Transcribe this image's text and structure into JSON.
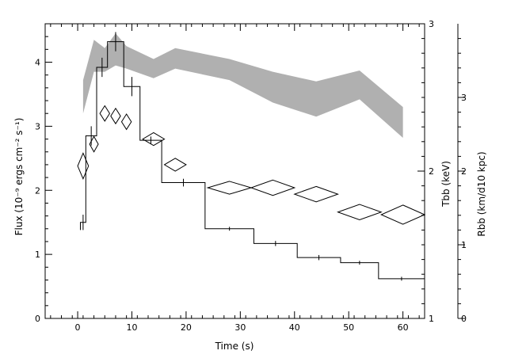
{
  "chart_data": {
    "type": "line",
    "title": "",
    "xlabel": "Time (s)",
    "ylabel": "Flux (10⁻⁹ ergs cm⁻² s⁻¹)",
    "ylabel_right1": "Tbb (keV)",
    "ylabel_right2": "Rbb (km/d10 kpc)",
    "xlim": [
      -6,
      64
    ],
    "ylim": [
      0,
      4.6
    ],
    "x_ticks": [
      0,
      10,
      20,
      30,
      40,
      50,
      60
    ],
    "y_ticks": [
      0,
      1,
      2,
      3,
      4
    ],
    "tbb_axis": {
      "range": [
        1,
        3
      ],
      "ticks": [
        1,
        2,
        3
      ],
      "label_ticks": [
        1,
        2,
        3
      ]
    },
    "rbb_axis": {
      "range": [
        0,
        4
      ],
      "ticks": [
        0,
        1,
        2,
        3
      ]
    },
    "series": [
      {
        "style": "histogram",
        "bins": [
          {
            "x0": 0.5,
            "x1": 1.5,
            "y": 1.5,
            "err": 0.12
          },
          {
            "x0": 1.5,
            "x1": 3.5,
            "y": 2.85,
            "err": 0.15
          },
          {
            "x0": 3.5,
            "x1": 5.5,
            "y": 3.92,
            "err": 0.15
          },
          {
            "x0": 5.5,
            "x1": 8.5,
            "y": 4.32,
            "err": 0.15
          },
          {
            "x0": 8.5,
            "x1": 11.5,
            "y": 3.62,
            "err": 0.15
          },
          {
            "x0": 11.5,
            "x1": 15.5,
            "y": 2.78,
            "err": 0.06
          },
          {
            "x0": 15.5,
            "x1": 23.5,
            "y": 2.12,
            "err": 0.06
          },
          {
            "x0": 23.5,
            "x1": 32.5,
            "y": 1.4,
            "err": 0.03
          },
          {
            "x0": 32.5,
            "x1": 40.5,
            "y": 1.17,
            "err": 0.04
          },
          {
            "x0": 40.5,
            "x1": 48.5,
            "y": 0.95,
            "err": 0.04
          },
          {
            "x0": 48.5,
            "x1": 55.5,
            "y": 0.87,
            "err": 0.03
          },
          {
            "x0": 55.5,
            "x1": 64,
            "y": 0.62,
            "err": 0.03
          }
        ]
      },
      {
        "style": "diamonds",
        "points": [
          {
            "x": 1,
            "xerr": 1,
            "y": 2.38,
            "yerr": 0.2
          },
          {
            "x": 3,
            "xerr": 0.8,
            "y": 2.72,
            "yerr": 0.12
          },
          {
            "x": 5,
            "xerr": 0.9,
            "y": 3.2,
            "yerr": 0.12
          },
          {
            "x": 7,
            "xerr": 0.9,
            "y": 3.16,
            "yerr": 0.12
          },
          {
            "x": 9,
            "xerr": 0.9,
            "y": 3.07,
            "yerr": 0.12
          },
          {
            "x": 14,
            "xerr": 2,
            "y": 2.8,
            "yerr": 0.1
          },
          {
            "x": 18,
            "xerr": 2,
            "y": 2.4,
            "yerr": 0.1
          },
          {
            "x": 28,
            "xerr": 4,
            "y": 2.04,
            "yerr": 0.1
          },
          {
            "x": 36,
            "xerr": 4,
            "y": 2.04,
            "yerr": 0.12
          },
          {
            "x": 44,
            "xerr": 4,
            "y": 1.94,
            "yerr": 0.12
          },
          {
            "x": 52,
            "xerr": 4,
            "y": 1.66,
            "yerr": 0.12
          },
          {
            "x": 60,
            "xerr": 4,
            "y": 1.62,
            "yerr": 0.15
          }
        ]
      },
      {
        "style": "band",
        "color": "#b0b0b0",
        "x": [
          1,
          3,
          5,
          7,
          9,
          14,
          18,
          28,
          36,
          44,
          52,
          60
        ],
        "upper": [
          3.72,
          4.35,
          4.22,
          4.45,
          4.25,
          4.05,
          4.22,
          4.05,
          3.85,
          3.7,
          3.87,
          3.3
        ],
        "lower": [
          3.2,
          3.85,
          3.85,
          3.95,
          3.9,
          3.75,
          3.9,
          3.72,
          3.37,
          3.15,
          3.42,
          2.82
        ]
      }
    ]
  }
}
